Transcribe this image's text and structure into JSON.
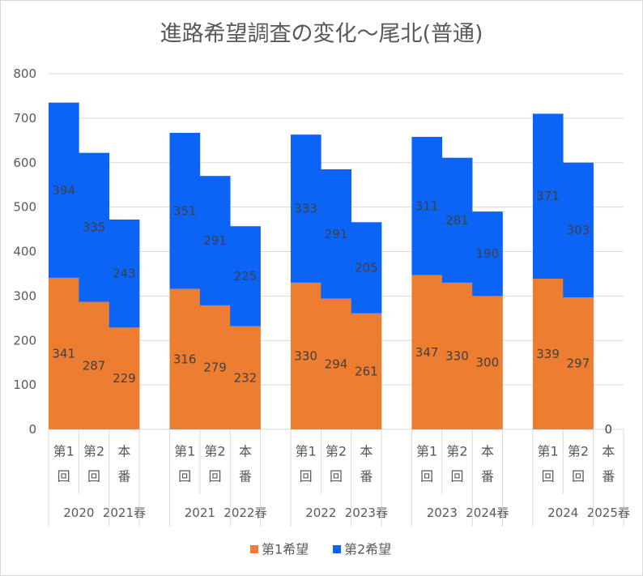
{
  "chart_data": {
    "type": "bar",
    "stacked": true,
    "title": "進路希望調査の変化〜尾北(普通)",
    "ylim": [
      0,
      800
    ],
    "yticks": [
      0,
      100,
      200,
      300,
      400,
      500,
      600,
      700,
      800
    ],
    "grid": true,
    "legend": "bottom",
    "category_groups": [
      [
        {
          "label": "2020",
          "categories": [
            [
              "第1",
              "回"
            ],
            [
              "第2",
              "回"
            ]
          ]
        },
        {
          "label": "2021春",
          "categories": [
            [
              "本",
              "番"
            ]
          ]
        }
      ],
      [
        {
          "label": "2021",
          "categories": [
            [
              "第1",
              "回"
            ],
            [
              "第2",
              "回"
            ]
          ]
        },
        {
          "label": "2022春",
          "categories": [
            [
              "本",
              "番"
            ]
          ]
        }
      ],
      [
        {
          "label": "2022",
          "categories": [
            [
              "第1",
              "回"
            ],
            [
              "第2",
              "回"
            ]
          ]
        },
        {
          "label": "2023春",
          "categories": [
            [
              "本",
              "番"
            ]
          ]
        }
      ],
      [
        {
          "label": "2023",
          "categories": [
            [
              "第1",
              "回"
            ],
            [
              "第2",
              "回"
            ]
          ]
        },
        {
          "label": "2024春",
          "categories": [
            [
              "本",
              "番"
            ]
          ]
        }
      ],
      [
        {
          "label": "2024",
          "categories": [
            [
              "第1",
              "回"
            ],
            [
              "第2",
              "回"
            ]
          ]
        },
        {
          "label": "2025春",
          "categories": [
            [
              "本",
              "番"
            ]
          ]
        }
      ]
    ],
    "series": [
      {
        "name": "第1希望",
        "color": "#ED7D31",
        "values": [
          341,
          287,
          229,
          316,
          279,
          232,
          330,
          294,
          261,
          347,
          330,
          300,
          339,
          297,
          0
        ]
      },
      {
        "name": "第2希望",
        "color": "#0B64F5",
        "values": [
          394,
          335,
          243,
          351,
          291,
          225,
          333,
          291,
          205,
          311,
          281,
          190,
          371,
          303,
          null
        ]
      }
    ]
  }
}
